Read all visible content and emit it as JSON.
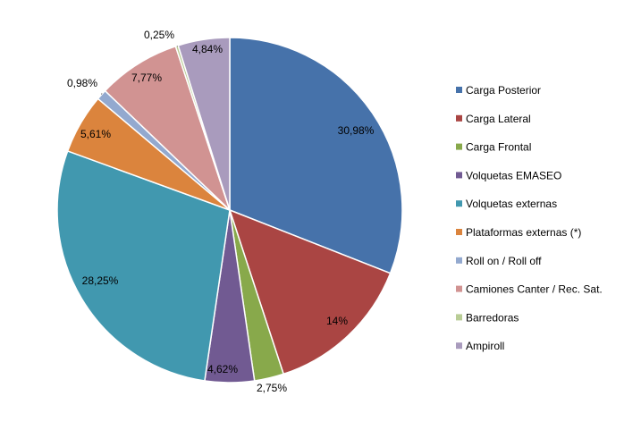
{
  "chart_data": {
    "type": "pie",
    "start_angle_deg": 0,
    "direction": "clockwise",
    "legend_position": "right",
    "slices": [
      {
        "name": "Carga Posterior",
        "value": 30.98,
        "label": "30,98%",
        "color": "#4672AA"
      },
      {
        "name": "Carga Lateral",
        "value": 14.0,
        "label": "14%",
        "color": "#AA4543"
      },
      {
        "name": "Carga Frontal",
        "value": 2.75,
        "label": "2,75%",
        "color": "#88A94B"
      },
      {
        "name": "Volquetas EMASEO",
        "value": 4.62,
        "label": "4,62%",
        "color": "#715A92"
      },
      {
        "name": "Volquetas externas",
        "value": 28.25,
        "label": "28,25%",
        "color": "#4198AF"
      },
      {
        "name": "Plataformas externas (*)",
        "value": 5.61,
        "label": "5,61%",
        "color": "#DB843D"
      },
      {
        "name": "Roll on / Roll off",
        "value": 0.98,
        "label": "0,98%",
        "color": "#93A9CF"
      },
      {
        "name": "Camiones Canter / Rec. Sat.",
        "value": 7.77,
        "label": "7,77%",
        "color": "#D19392"
      },
      {
        "name": "Barredoras",
        "value": 0.25,
        "label": "0,25%",
        "color": "#B9CD96"
      },
      {
        "name": "Ampiroll",
        "value": 4.84,
        "label": "4,84%",
        "color": "#A99BBD"
      }
    ]
  }
}
